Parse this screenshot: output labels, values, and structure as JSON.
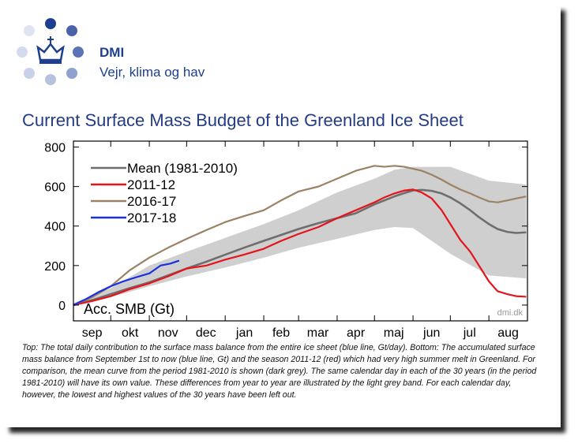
{
  "header": {
    "org_name": "DMI",
    "tagline": "Vejr, klima og hav",
    "brand_color": "#1d3f8f"
  },
  "title": "Current Surface Mass Budget of the Greenland Ice Sheet",
  "chart_data": {
    "type": "line",
    "title": "Current Surface Mass Budget of the Greenland Ice Sheet",
    "ylabel_inside": "Acc. SMB (Gt)",
    "watermark": "dmi.dk",
    "ylim": [
      -80,
      830
    ],
    "yticks": [
      0,
      200,
      400,
      600,
      800
    ],
    "x_months": [
      "sep",
      "okt",
      "nov",
      "dec",
      "jan",
      "feb",
      "mar",
      "apr",
      "maj",
      "jun",
      "jul",
      "aug"
    ],
    "xlim_days": [
      0,
      365
    ],
    "grid": false,
    "legend_position": "top-left",
    "band": {
      "label": "lowest/highest of 30 years removed",
      "color": "#cfcfcf",
      "x": [
        0,
        30,
        61,
        91,
        122,
        153,
        181,
        212,
        242,
        258,
        273,
        303,
        334,
        364
      ],
      "lower": [
        0,
        40,
        95,
        145,
        190,
        240,
        290,
        335,
        380,
        395,
        390,
        260,
        150,
        135
      ],
      "upper": [
        10,
        85,
        200,
        270,
        340,
        410,
        480,
        570,
        640,
        685,
        700,
        700,
        630,
        610
      ]
    },
    "series": [
      {
        "name": "Mean (1981-2010)",
        "color": "#6e6e6e",
        "x": [
          0,
          15,
          30,
          45,
          61,
          76,
          91,
          107,
          122,
          137,
          153,
          167,
          181,
          197,
          212,
          227,
          242,
          250,
          258,
          266,
          273,
          280,
          288,
          296,
          303,
          311,
          319,
          326,
          334,
          341,
          349,
          356,
          364
        ],
        "y": [
          0,
          25,
          55,
          85,
          115,
          150,
          185,
          220,
          255,
          290,
          325,
          355,
          385,
          415,
          440,
          465,
          510,
          530,
          550,
          567,
          580,
          583,
          578,
          565,
          545,
          515,
          480,
          445,
          410,
          385,
          370,
          365,
          368
        ]
      },
      {
        "name": "2011-12",
        "color": "#e5141a",
        "x": [
          0,
          15,
          30,
          45,
          61,
          76,
          91,
          107,
          122,
          137,
          153,
          167,
          181,
          197,
          212,
          227,
          242,
          250,
          258,
          266,
          273,
          280,
          288,
          296,
          303,
          311,
          319,
          326,
          334,
          341,
          349,
          356,
          364
        ],
        "y": [
          0,
          20,
          45,
          80,
          110,
          145,
          185,
          200,
          230,
          255,
          285,
          325,
          360,
          395,
          440,
          480,
          520,
          545,
          565,
          580,
          585,
          570,
          540,
          480,
          410,
          330,
          270,
          200,
          120,
          70,
          55,
          45,
          42
        ]
      },
      {
        "name": "2016-17",
        "color": "#9c8264",
        "x": [
          0,
          15,
          30,
          45,
          61,
          76,
          91,
          107,
          122,
          137,
          153,
          167,
          181,
          197,
          212,
          227,
          242,
          250,
          258,
          266,
          273,
          280,
          288,
          296,
          303,
          311,
          319,
          326,
          334,
          341,
          349,
          356,
          364
        ],
        "y": [
          0,
          40,
          95,
          175,
          240,
          290,
          335,
          380,
          420,
          450,
          480,
          530,
          575,
          600,
          640,
          680,
          705,
          700,
          705,
          700,
          690,
          680,
          660,
          635,
          610,
          585,
          565,
          545,
          525,
          520,
          530,
          540,
          550
        ]
      },
      {
        "name": "2017-18",
        "color": "#1a2fe0",
        "x": [
          0,
          10,
          20,
          30,
          40,
          50,
          61,
          70,
          78,
          85
        ],
        "y": [
          0,
          30,
          65,
          95,
          120,
          140,
          160,
          200,
          210,
          225
        ]
      }
    ]
  },
  "caption": "Top: The total daily contribution to the surface mass balance from the entire ice sheet (blue line, Gt/day). Bottom: The accumulated surface mass balance from September 1st to now (blue line, Gt) and the season 2011-12 (red) which had very high summer melt in Greenland. For comparison, the mean curve from the period 1981-2010 is shown (dark grey). The same calendar day in each of the 30 years (in the period 1981-2010) will have its own value. These differences from year to year are illustrated by the light grey band. For each calendar day, however, the lowest and highest values of the 30 years have been left out."
}
